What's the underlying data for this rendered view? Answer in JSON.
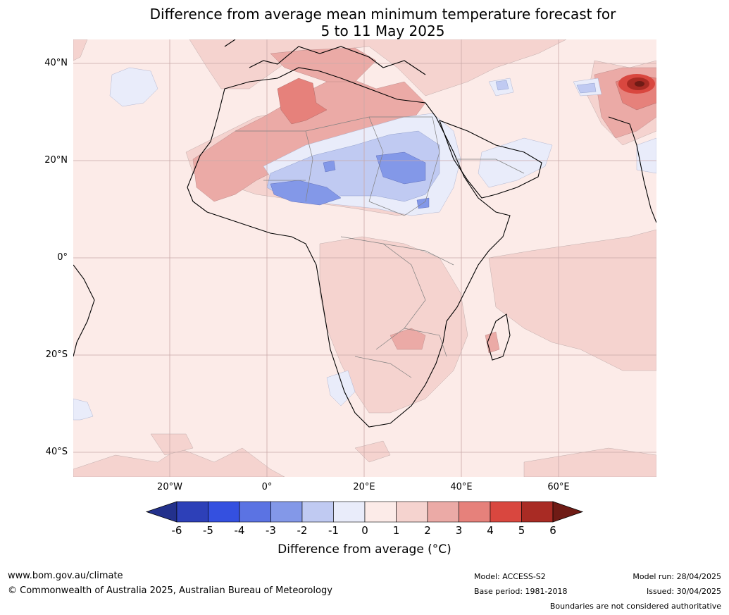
{
  "title": {
    "line1": "Difference from average mean minimum temperature forecast for",
    "line2": "5 to 11 May 2025"
  },
  "axes": {
    "lat_labels": [
      "40°N",
      "20°N",
      "0°",
      "20°S",
      "40°S"
    ],
    "lon_labels": [
      "20°W",
      "0°",
      "20°E",
      "40°E",
      "60°E"
    ]
  },
  "colorbar": {
    "ticks": [
      "-6",
      "-5",
      "-4",
      "-3",
      "-2",
      "-1",
      "0",
      "1",
      "2",
      "3",
      "4",
      "5",
      "6"
    ],
    "title": "Difference from average (°C)",
    "colors": [
      "#23318c",
      "#2d40b8",
      "#3450e0",
      "#5b73e3",
      "#8398e8",
      "#c0caf2",
      "#e9ecfa",
      "#fcebe8",
      "#f5d3cf",
      "#ebaaa6",
      "#e6817b",
      "#d9473f",
      "#a92b24",
      "#6f1b15"
    ]
  },
  "footer": {
    "website": "www.bom.gov.au/climate",
    "copyright": "© Commonwealth of Australia 2025, Australian Bureau of Meteorology",
    "model": "Model: ACCESS-S2",
    "base_period": "Base period: 1981-2018",
    "model_run": "Model run: 28/04/2025",
    "issued": "Issued: 30/04/2025",
    "disclaimer": "Boundaries are not considered authoritative"
  }
}
